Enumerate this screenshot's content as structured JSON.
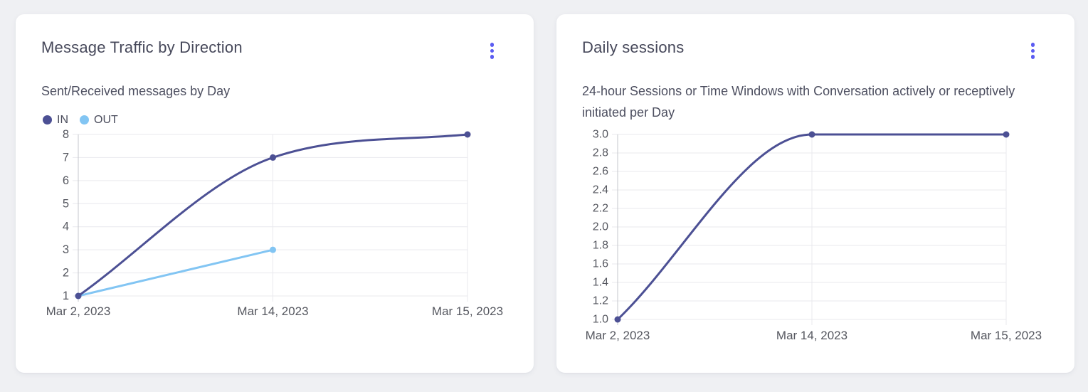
{
  "colors": {
    "accent": "#5b5cf2",
    "axis_line": "#c6c7cc",
    "grid_line": "#e9e9ee",
    "tick_label": "#55575f",
    "title": "#46485a",
    "subtitle": "#4d4f60"
  },
  "cards": [
    {
      "title": "Message Traffic by Direction",
      "subtitle": "Sent/Received messages by Day",
      "menu_icon": "kebab-menu"
    },
    {
      "title": "Daily sessions",
      "subtitle": "24-hour Sessions or Time Windows with Conversation actively or receptively initiated per Day",
      "menu_icon": "kebab-menu"
    }
  ],
  "chart_data": [
    {
      "type": "line",
      "title": "Message Traffic by Direction",
      "subtitle": "Sent/Received messages by Day",
      "categories": [
        "Mar 2, 2023",
        "Mar 14, 2023",
        "Mar 15, 2023"
      ],
      "series": [
        {
          "name": "IN",
          "color": "#4c5094",
          "values": [
            1,
            7,
            8
          ]
        },
        {
          "name": "OUT",
          "color": "#82c5f3",
          "values": [
            1,
            3,
            null
          ]
        }
      ],
      "ylim": [
        1,
        8
      ],
      "ytick_step": 1,
      "ytick_decimals": 0,
      "legend_position": "top-left",
      "grid": true,
      "smooth": true
    },
    {
      "type": "line",
      "title": "Daily sessions",
      "categories": [
        "Mar 2, 2023",
        "Mar 14, 2023",
        "Mar 15, 2023"
      ],
      "series": [
        {
          "name": "Daily sessions",
          "color": "#4c5094",
          "values": [
            1,
            3,
            3
          ]
        }
      ],
      "ylim": [
        1,
        3
      ],
      "ytick_step": 0.2,
      "ytick_decimals": 1,
      "legend_position": "none",
      "grid": true,
      "smooth": true
    }
  ]
}
